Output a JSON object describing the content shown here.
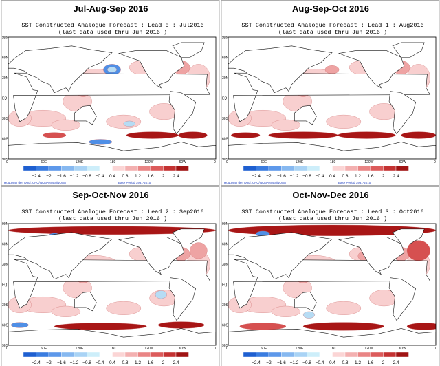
{
  "panels": [
    {
      "title": "Jul-Aug-Sep 2016",
      "subtitle": "SST Constructed Analogue Forecast : Lead 0 : Jul2016",
      "note": "(last data used thru Jun 2016 )"
    },
    {
      "title": "Aug-Sep-Oct 2016",
      "subtitle": "SST Constructed Analogue Forecast : Lead 1 : Aug2016",
      "note": "(last data used thru Jun 2016 )"
    },
    {
      "title": "Sep-Oct-Nov 2016",
      "subtitle": "SST Constructed Analogue Forecast : Lead 2 : Sep2016",
      "note": "(last data used thru Jun 2016 )"
    },
    {
      "title": "Oct-Nov-Dec 2016",
      "subtitle": "SST Constructed Analogue Forecast : Lead 3 : Oct2016",
      "note": "(last data used thru Jun 2016 )"
    }
  ],
  "lat_labels": [
    "90N",
    "60N",
    "30N",
    "EQ",
    "30S",
    "60S",
    "90S"
  ],
  "lon_labels": [
    "0",
    "60E",
    "120E",
    "180",
    "120W",
    "60W",
    "0"
  ],
  "colorbar": {
    "labels": [
      "−2.4",
      "−2",
      "−1.6",
      "−1.2",
      "−0.8",
      "−0.4",
      "0.4",
      "0.8",
      "1.2",
      "1.6",
      "2",
      "2.4"
    ],
    "colors": [
      "#1e5fd0",
      "#3a7ce0",
      "#5d98ea",
      "#86b8f0",
      "#a9d3f5",
      "#cdeefa",
      "#ffffff",
      "#fbd5d5",
      "#f3b0b0",
      "#e98585",
      "#dc5b5b",
      "#c43232",
      "#a01414"
    ]
  },
  "credits": {
    "author": "Huug van den Dool, CPC/NCEP/NWS/NOAA",
    "base": "Base Period 1981-2010"
  }
}
